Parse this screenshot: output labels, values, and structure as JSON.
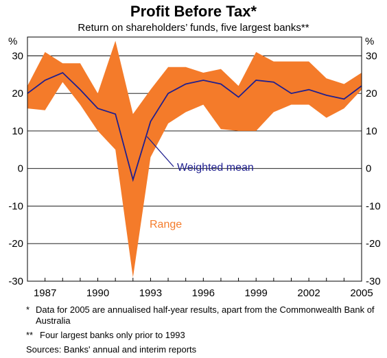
{
  "header": {
    "title": "Profit Before Tax*",
    "subtitle": "Return on shareholders’ funds, five largest banks**"
  },
  "chart_data": {
    "type": "area",
    "title": "Profit Before Tax*",
    "subtitle": "Return on shareholders’ funds, five largest banks**",
    "unit_left": "%",
    "unit_right": "%",
    "x": [
      1986,
      1987,
      1988,
      1989,
      1990,
      1991,
      1992,
      1993,
      1994,
      1995,
      1996,
      1997,
      1998,
      1999,
      2000,
      2001,
      2002,
      2003,
      2004,
      2005
    ],
    "xticks": [
      1987,
      1990,
      1993,
      1996,
      1999,
      2002,
      2005
    ],
    "xlim": [
      1986,
      2005
    ],
    "ylim": [
      -30,
      35
    ],
    "yticks": [
      -30,
      -20,
      -10,
      0,
      10,
      20,
      30
    ],
    "series": [
      {
        "name": "Range",
        "type": "band",
        "low": [
          16,
          15.5,
          23,
          17,
          10,
          5,
          -29,
          3,
          12,
          15,
          17,
          10.5,
          10,
          10,
          15,
          17,
          17,
          13.5,
          16,
          21
        ],
        "high": [
          22,
          31,
          28,
          28,
          20,
          34,
          14.5,
          21,
          27,
          27,
          25.5,
          26.5,
          22,
          31,
          28.5,
          28.5,
          28.5,
          24,
          22.5,
          25.5
        ],
        "color": "#F47B2A"
      },
      {
        "name": "Weighted mean",
        "type": "line",
        "values": [
          20,
          23.5,
          25.5,
          21,
          16,
          14.5,
          -3,
          12.5,
          20,
          22.5,
          23.5,
          22.5,
          19,
          23.5,
          23,
          20,
          21,
          19.5,
          18.5,
          22
        ],
        "color": "#1F1F8F"
      }
    ],
    "annotations": [
      "Weighted mean",
      "Range"
    ],
    "grid": true
  },
  "notes": {
    "n1_mark": "*",
    "n1_text": "Data for 2005 are annualised half-year results, apart from the Commonwealth Bank of Australia",
    "n2_mark": "**",
    "n2_text": "Four largest banks only prior to 1993",
    "sources": "Sources: Banks' annual and interim reports"
  }
}
